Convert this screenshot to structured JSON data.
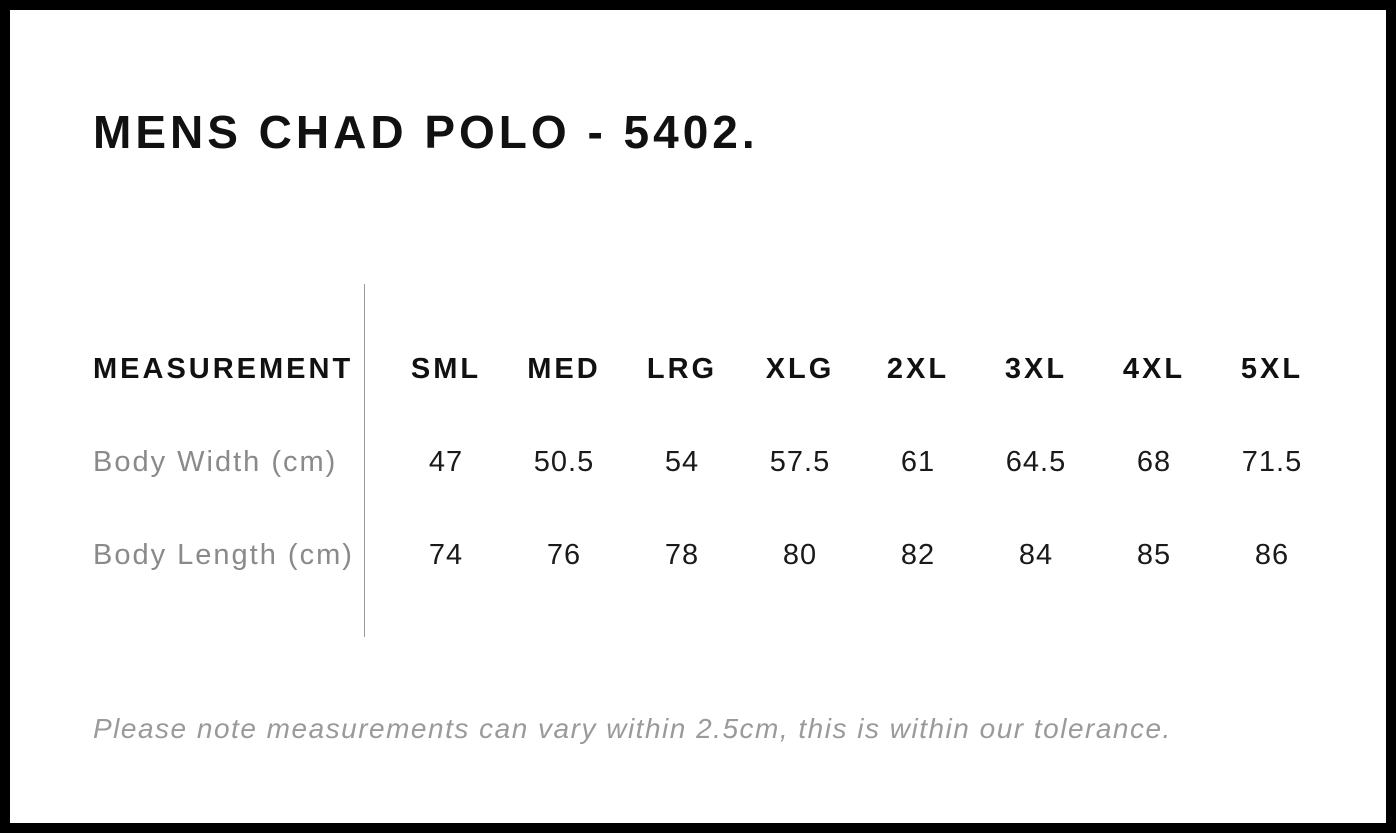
{
  "page": {
    "title": "MENS CHAD POLO - 5402.",
    "note": "Please note measurements can vary within 2.5cm, this is within our tolerance."
  },
  "table": {
    "header_label": "MEASUREMENT",
    "sizes": [
      "SML",
      "MED",
      "LRG",
      "XLG",
      "2XL",
      "3XL",
      "4XL",
      "5XL"
    ],
    "rows": [
      {
        "label": "Body Width (cm)",
        "values": [
          "47",
          "50.5",
          "54",
          "57.5",
          "61",
          "64.5",
          "68",
          "71.5"
        ]
      },
      {
        "label": "Body Length (cm)",
        "values": [
          "74",
          "76",
          "78",
          "80",
          "82",
          "84",
          "85",
          "86"
        ]
      }
    ]
  },
  "chart_data": {
    "type": "table",
    "title": "MENS CHAD POLO - 5402.",
    "columns": [
      "MEASUREMENT",
      "SML",
      "MED",
      "LRG",
      "XLG",
      "2XL",
      "3XL",
      "4XL",
      "5XL"
    ],
    "rows": [
      [
        "Body Width (cm)",
        47,
        50.5,
        54,
        57.5,
        61,
        64.5,
        68,
        71.5
      ],
      [
        "Body Length (cm)",
        74,
        76,
        78,
        80,
        82,
        84,
        85,
        86
      ]
    ],
    "note": "Please note measurements can vary within 2.5cm, this is within our tolerance."
  },
  "colors": {
    "frame": "#000000",
    "background": "#ffffff",
    "heading_text": "#111111",
    "value_text": "#1a1a1a",
    "muted_text": "#8a8a8a",
    "note_text": "#9a9a9a",
    "divider": "#999999"
  }
}
